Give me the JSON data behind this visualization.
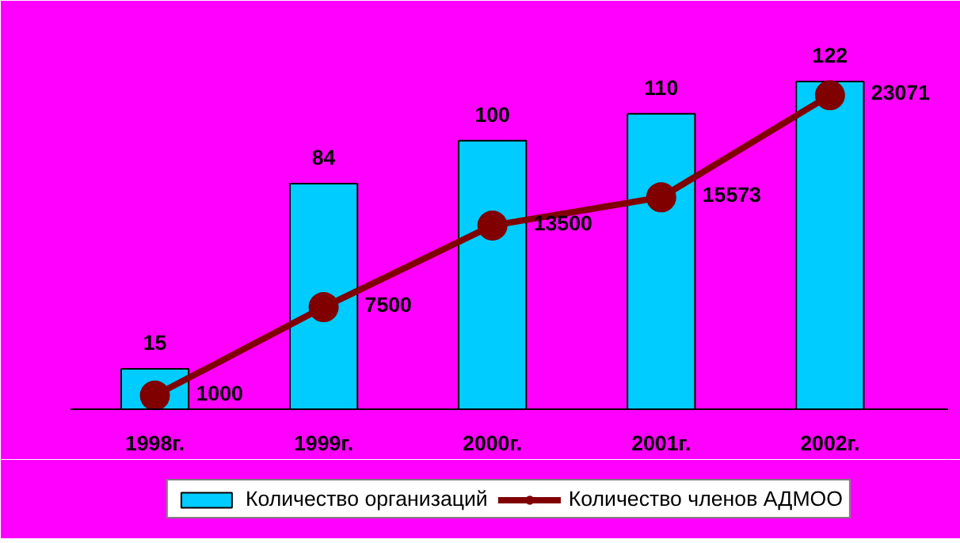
{
  "chart_data": {
    "type": "bar",
    "categories": [
      "1998г.",
      "1999г.",
      "2000г.",
      "2001г.",
      "2002г."
    ],
    "series": [
      {
        "name": "Количество организаций",
        "color": "#00ccff",
        "values": [
          15,
          84,
          100,
          110,
          122
        ]
      },
      {
        "name": "Количество членов АДМОО",
        "color": "#800000",
        "type": "line",
        "axis": "y2",
        "values": [
          1000,
          7500,
          13500,
          15573,
          23071
        ]
      }
    ],
    "data_labels": true,
    "marker": "circle",
    "legend": "bottom",
    "grid": false
  }
}
